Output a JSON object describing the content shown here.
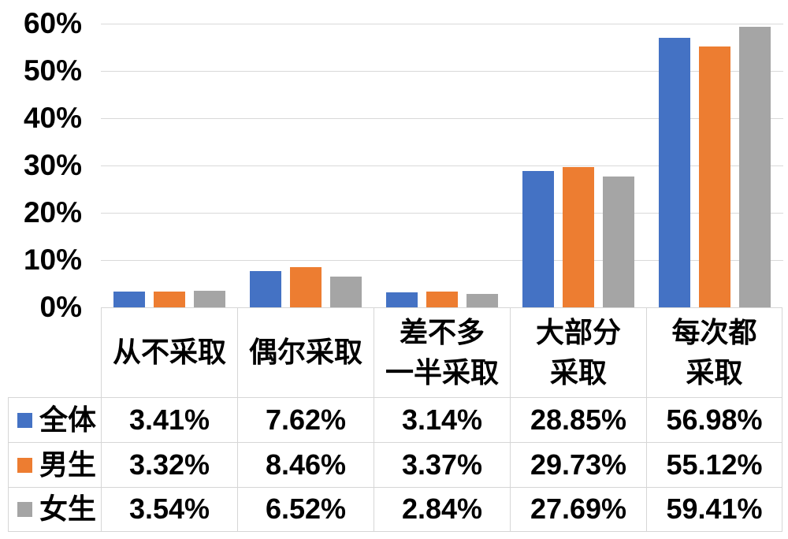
{
  "chart_data": {
    "type": "bar",
    "title": "",
    "categories": [
      "从不采取",
      "偶尔采取",
      "差不多一半采取",
      "大部分采取",
      "每次都采取"
    ],
    "category_label_lines": [
      [
        "从不采取"
      ],
      [
        "偶尔采取"
      ],
      [
        "差不多",
        "一半采取"
      ],
      [
        "大部分",
        "采取"
      ],
      [
        "每次都",
        "采取"
      ]
    ],
    "series": [
      {
        "name": "全体",
        "color": "#4472C4",
        "values": [
          3.41,
          7.62,
          3.14,
          28.85,
          56.98
        ],
        "labels": [
          "3.41%",
          "7.62%",
          "3.14%",
          "28.85%",
          "56.98%"
        ]
      },
      {
        "name": "男生",
        "color": "#ED7D31",
        "values": [
          3.32,
          8.46,
          3.37,
          29.73,
          55.12
        ],
        "labels": [
          "3.32%",
          "8.46%",
          "3.37%",
          "29.73%",
          "55.12%"
        ]
      },
      {
        "name": "女生",
        "color": "#A5A5A5",
        "values": [
          3.54,
          6.52,
          2.84,
          27.69,
          59.41
        ],
        "labels": [
          "3.54%",
          "6.52%",
          "2.84%",
          "27.69%",
          "59.41%"
        ]
      }
    ],
    "y_axis": {
      "tick_labels": [
        "60%",
        "50%",
        "40%",
        "30%",
        "20%",
        "10%",
        "0%"
      ],
      "tick_values": [
        60,
        50,
        40,
        30,
        20,
        10,
        0
      ],
      "min": 0,
      "max": 60,
      "grid": true
    },
    "legend_position": "table-left-column",
    "colors": {
      "gridline": "#D9D9D9",
      "table_border": "#D6D6D6",
      "text": "#000000"
    }
  }
}
